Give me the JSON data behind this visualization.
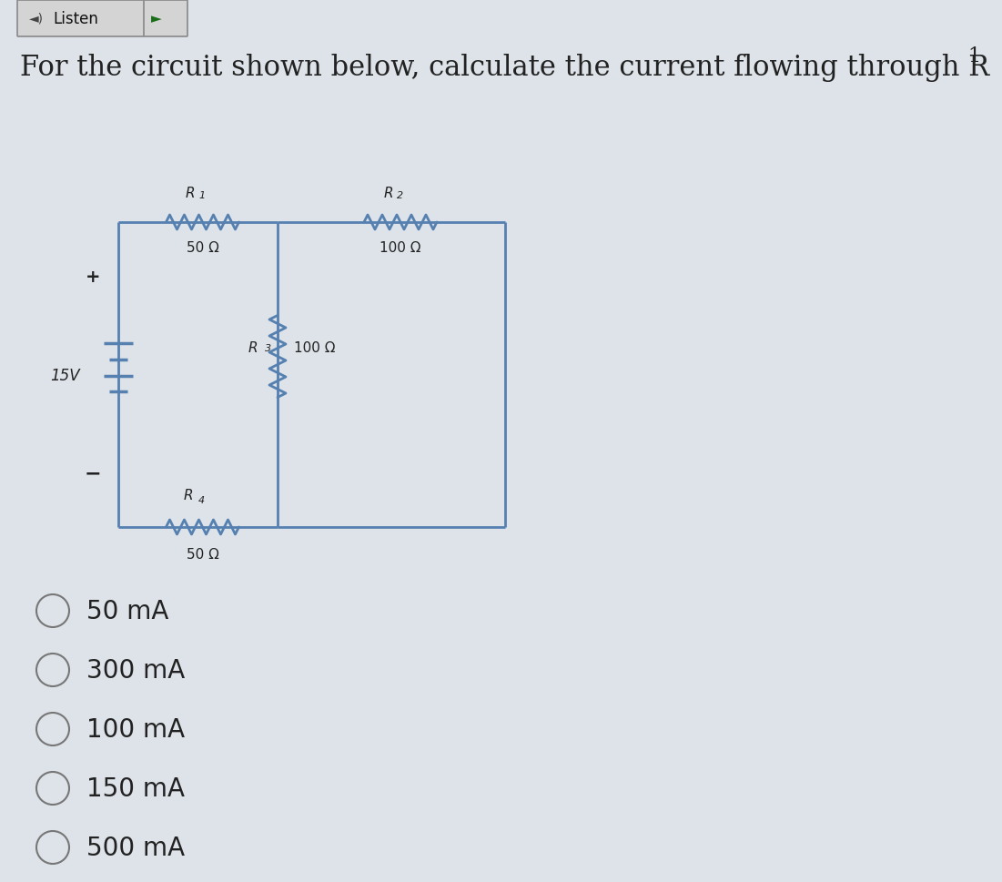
{
  "background_color": "#dde3e8",
  "circuit_color": "#5580b0",
  "text_color": "#222222",
  "title_text": "For the circuit shown below, calculate the current flowing through R",
  "title_subscript": "1",
  "circuit": {
    "battery_voltage": "15V",
    "R1_label": "R",
    "R1_sub": "1",
    "R1_value": "50 Ω",
    "R2_label": "R",
    "R2_sub": "2",
    "R2_value": "100 Ω",
    "R3_label": "R",
    "R3_sub": "3",
    "R3_value": "100 Ω",
    "R4_label": "R",
    "R4_sub": "4",
    "R4_value": "50 Ω"
  },
  "choices": [
    "50 mA",
    "300 mA",
    "100 mA",
    "150 mA",
    "500 mA"
  ],
  "title_fontsize": 22,
  "choice_fontsize": 20,
  "label_fontsize": 11,
  "value_fontsize": 11
}
